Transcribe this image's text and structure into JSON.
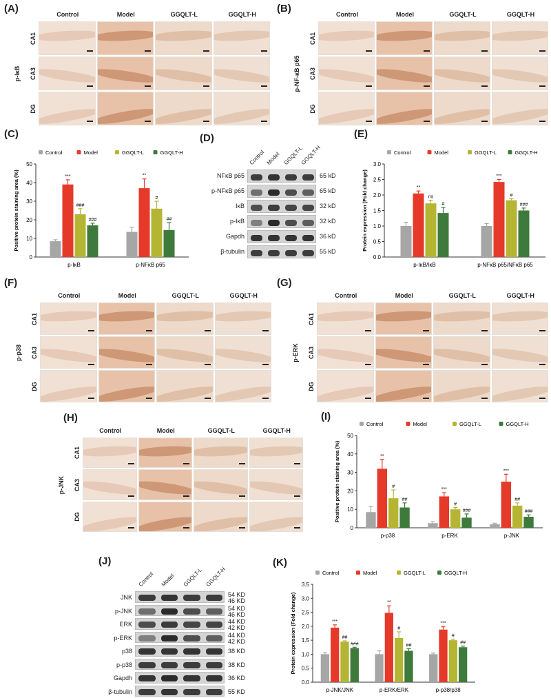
{
  "panels": {
    "A": "(A)",
    "B": "(B)",
    "C": "(C)",
    "D": "(D)",
    "E": "(E)",
    "F": "(F)",
    "G": "(G)",
    "H": "(H)",
    "I": "(I)",
    "J": "(J)",
    "K": "(K)"
  },
  "groups": [
    "Control",
    "Model",
    "GGQLT-L",
    "GGQLT-H"
  ],
  "regions": [
    "CA1",
    "CA3",
    "DG"
  ],
  "micrographs": {
    "A": {
      "protein": "p-IκB"
    },
    "B": {
      "protein": "p-NF-κB p65"
    },
    "F": {
      "protein": "p-p38"
    },
    "G": {
      "protein": "p-ERK"
    },
    "H": {
      "protein": "p-JNK"
    }
  },
  "colors": {
    "Control": "#a6a6a6",
    "Model": "#e53a2a",
    "GGQLT-L": "#b5b534",
    "GGQLT-H": "#3d7a3b"
  },
  "blots": {
    "D": {
      "lanes": [
        "Control",
        "Model",
        "GGQLT-L",
        "GGQLT-H"
      ],
      "rows": [
        {
          "name": "NFκB p65",
          "kd": "65 kD"
        },
        {
          "name": "p-NFκB p65",
          "kd": "65 kD"
        },
        {
          "name": "IκB",
          "kd": "32 kD"
        },
        {
          "name": "p-IκB",
          "kd": "32 kD"
        },
        {
          "name": "Gapdh",
          "kd": "36 kD"
        },
        {
          "name": "β-tubulin",
          "kd": "55 kD"
        }
      ]
    },
    "J": {
      "lanes": [
        "Control",
        "Model",
        "GGQLT-L",
        "GGQLT-H"
      ],
      "rows": [
        {
          "name": "JNK",
          "kd": "54 KD\n46 KD"
        },
        {
          "name": "p-JNK",
          "kd": "54 KD\n46 KD"
        },
        {
          "name": "ERK",
          "kd": "44 KD\n42 KD"
        },
        {
          "name": "p-ERK",
          "kd": "44 KD\n42 KD"
        },
        {
          "name": "p38",
          "kd": "38 KD"
        },
        {
          "name": "p-p38",
          "kd": "38 KD"
        },
        {
          "name": "Gapdh",
          "kd": "36 KD"
        },
        {
          "name": "β-tubulin",
          "kd": "55 KD"
        }
      ]
    }
  },
  "chart_data": [
    {
      "id": "C",
      "type": "bar",
      "title": "",
      "ylabel": "Positive protein staining area (%)",
      "ylim": [
        0,
        50
      ],
      "yticks": [
        0,
        10,
        20,
        30,
        40,
        50
      ],
      "categories": [
        "p-IκB",
        "p-NFκB p65"
      ],
      "series": [
        {
          "name": "Control",
          "values": [
            8.5,
            13.5
          ],
          "errors": [
            0.8,
            2.5
          ],
          "marks": [
            "",
            ""
          ]
        },
        {
          "name": "Model",
          "values": [
            39,
            37
          ],
          "errors": [
            2.5,
            5
          ],
          "marks": [
            "***",
            "**"
          ]
        },
        {
          "name": "GGQLT-L",
          "values": [
            23,
            26
          ],
          "errors": [
            3,
            4
          ],
          "marks": [
            "###",
            "#"
          ]
        },
        {
          "name": "GGQLT-H",
          "values": [
            17,
            14.5
          ],
          "errors": [
            1.2,
            4
          ],
          "marks": [
            "###",
            "##"
          ]
        }
      ]
    },
    {
      "id": "E",
      "type": "bar",
      "ylabel": "Protein expression (Fold change)",
      "ylim": [
        0,
        3.0
      ],
      "yticks": [
        "0.0",
        "0.5",
        "1.0",
        "1.5",
        "2.0",
        "2.5",
        "3.0"
      ],
      "categories": [
        "p-IκB/IκB",
        "p-NFκB p65/NFκB p65"
      ],
      "series": [
        {
          "name": "Control",
          "values": [
            1.0,
            1.0
          ],
          "errors": [
            0.12,
            0.08
          ],
          "marks": [
            "",
            ""
          ]
        },
        {
          "name": "Model",
          "values": [
            2.05,
            2.42
          ],
          "errors": [
            0.08,
            0.08
          ],
          "marks": [
            "**",
            "***"
          ]
        },
        {
          "name": "GGQLT-L",
          "values": [
            1.73,
            1.83
          ],
          "errors": [
            0.1,
            0.05
          ],
          "marks": [
            "ns",
            "#"
          ]
        },
        {
          "name": "GGQLT-H",
          "values": [
            1.42,
            1.5
          ],
          "errors": [
            0.18,
            0.08
          ],
          "marks": [
            "#",
            "###"
          ]
        }
      ]
    },
    {
      "id": "I",
      "type": "bar",
      "ylabel": "Positive protein staining area (%)",
      "ylim": [
        0,
        50
      ],
      "yticks": [
        0,
        10,
        20,
        30,
        40,
        50
      ],
      "categories": [
        "p-p38",
        "p-ERK",
        "p-JNK"
      ],
      "series": [
        {
          "name": "Control",
          "values": [
            8.5,
            2.5,
            2
          ],
          "errors": [
            3,
            0.8,
            0.5
          ],
          "marks": [
            "",
            "",
            ""
          ]
        },
        {
          "name": "Model",
          "values": [
            32,
            17,
            25
          ],
          "errors": [
            5,
            2,
            4
          ],
          "marks": [
            "**",
            "***",
            "***"
          ]
        },
        {
          "name": "GGQLT-L",
          "values": [
            16,
            10,
            12
          ],
          "errors": [
            4.5,
            1,
            1.5
          ],
          "marks": [
            "#",
            "#",
            "##"
          ]
        },
        {
          "name": "GGQLT-H",
          "values": [
            11,
            5.5,
            6
          ],
          "errors": [
            2.5,
            2,
            1
          ],
          "marks": [
            "##",
            "###",
            "###"
          ]
        }
      ]
    },
    {
      "id": "K",
      "type": "bar",
      "ylabel": "Protein expression (Fold change)",
      "ylim": [
        0,
        3.5
      ],
      "yticks": [
        "0.0",
        "0.5",
        "1.0",
        "1.5",
        "2.0",
        "2.5",
        "3.0",
        "3.5"
      ],
      "categories": [
        "p-JNK/JNK",
        "p-ERK/ERK",
        "p-p38/p38"
      ],
      "series": [
        {
          "name": "Control",
          "values": [
            1.0,
            1.0,
            1.0
          ],
          "errors": [
            0.05,
            0.12,
            0.04
          ],
          "marks": [
            "",
            "",
            ""
          ]
        },
        {
          "name": "Model",
          "values": [
            1.95,
            2.48,
            1.88
          ],
          "errors": [
            0.1,
            0.25,
            0.1
          ],
          "marks": [
            "***",
            "**",
            "***"
          ]
        },
        {
          "name": "GGQLT-L",
          "values": [
            1.45,
            1.58,
            1.5
          ],
          "errors": [
            0.03,
            0.22,
            0.04
          ],
          "marks": [
            "##",
            "#",
            "#"
          ]
        },
        {
          "name": "GGQLT-H",
          "values": [
            1.22,
            1.12,
            1.25
          ],
          "errors": [
            0.03,
            0.08,
            0.04
          ],
          "marks": [
            "###",
            "##",
            "##"
          ]
        }
      ]
    }
  ]
}
